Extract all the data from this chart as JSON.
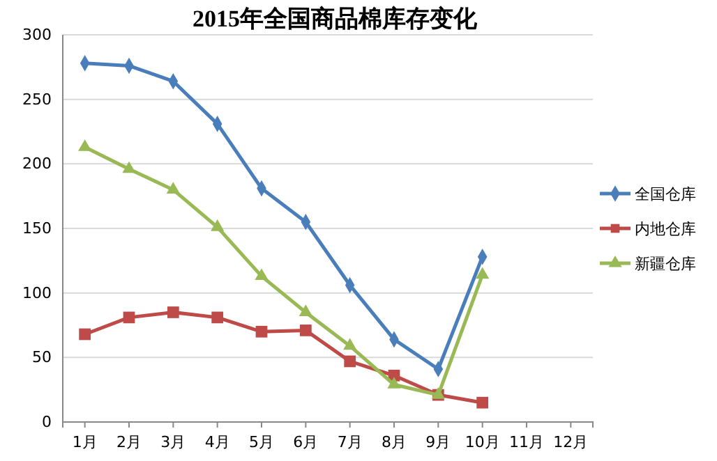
{
  "chart_data": {
    "type": "line",
    "title": "2015年全国商品棉库存变化",
    "categories": [
      "1月",
      "2月",
      "3月",
      "4月",
      "5月",
      "6月",
      "7月",
      "8月",
      "9月",
      "10月",
      "11月",
      "12月"
    ],
    "series": [
      {
        "name": "全国仓库",
        "color": "#4a7ebb",
        "marker": "diamond",
        "values": [
          278,
          276,
          264,
          231,
          181,
          155,
          106,
          64,
          41,
          128,
          null,
          null
        ]
      },
      {
        "name": "内地仓库",
        "color": "#be4b48",
        "marker": "square",
        "values": [
          68,
          81,
          85,
          81,
          70,
          71,
          47,
          36,
          21,
          15,
          null,
          null
        ]
      },
      {
        "name": "新疆仓库",
        "color": "#98b954",
        "marker": "triangle",
        "values": [
          213,
          196,
          180,
          151,
          113,
          85,
          59,
          29,
          21,
          114,
          null,
          null
        ]
      }
    ],
    "ylim": [
      0,
      300
    ],
    "yticks": [
      0,
      50,
      100,
      150,
      200,
      250,
      300
    ],
    "grid": "y",
    "legend": "right"
  }
}
